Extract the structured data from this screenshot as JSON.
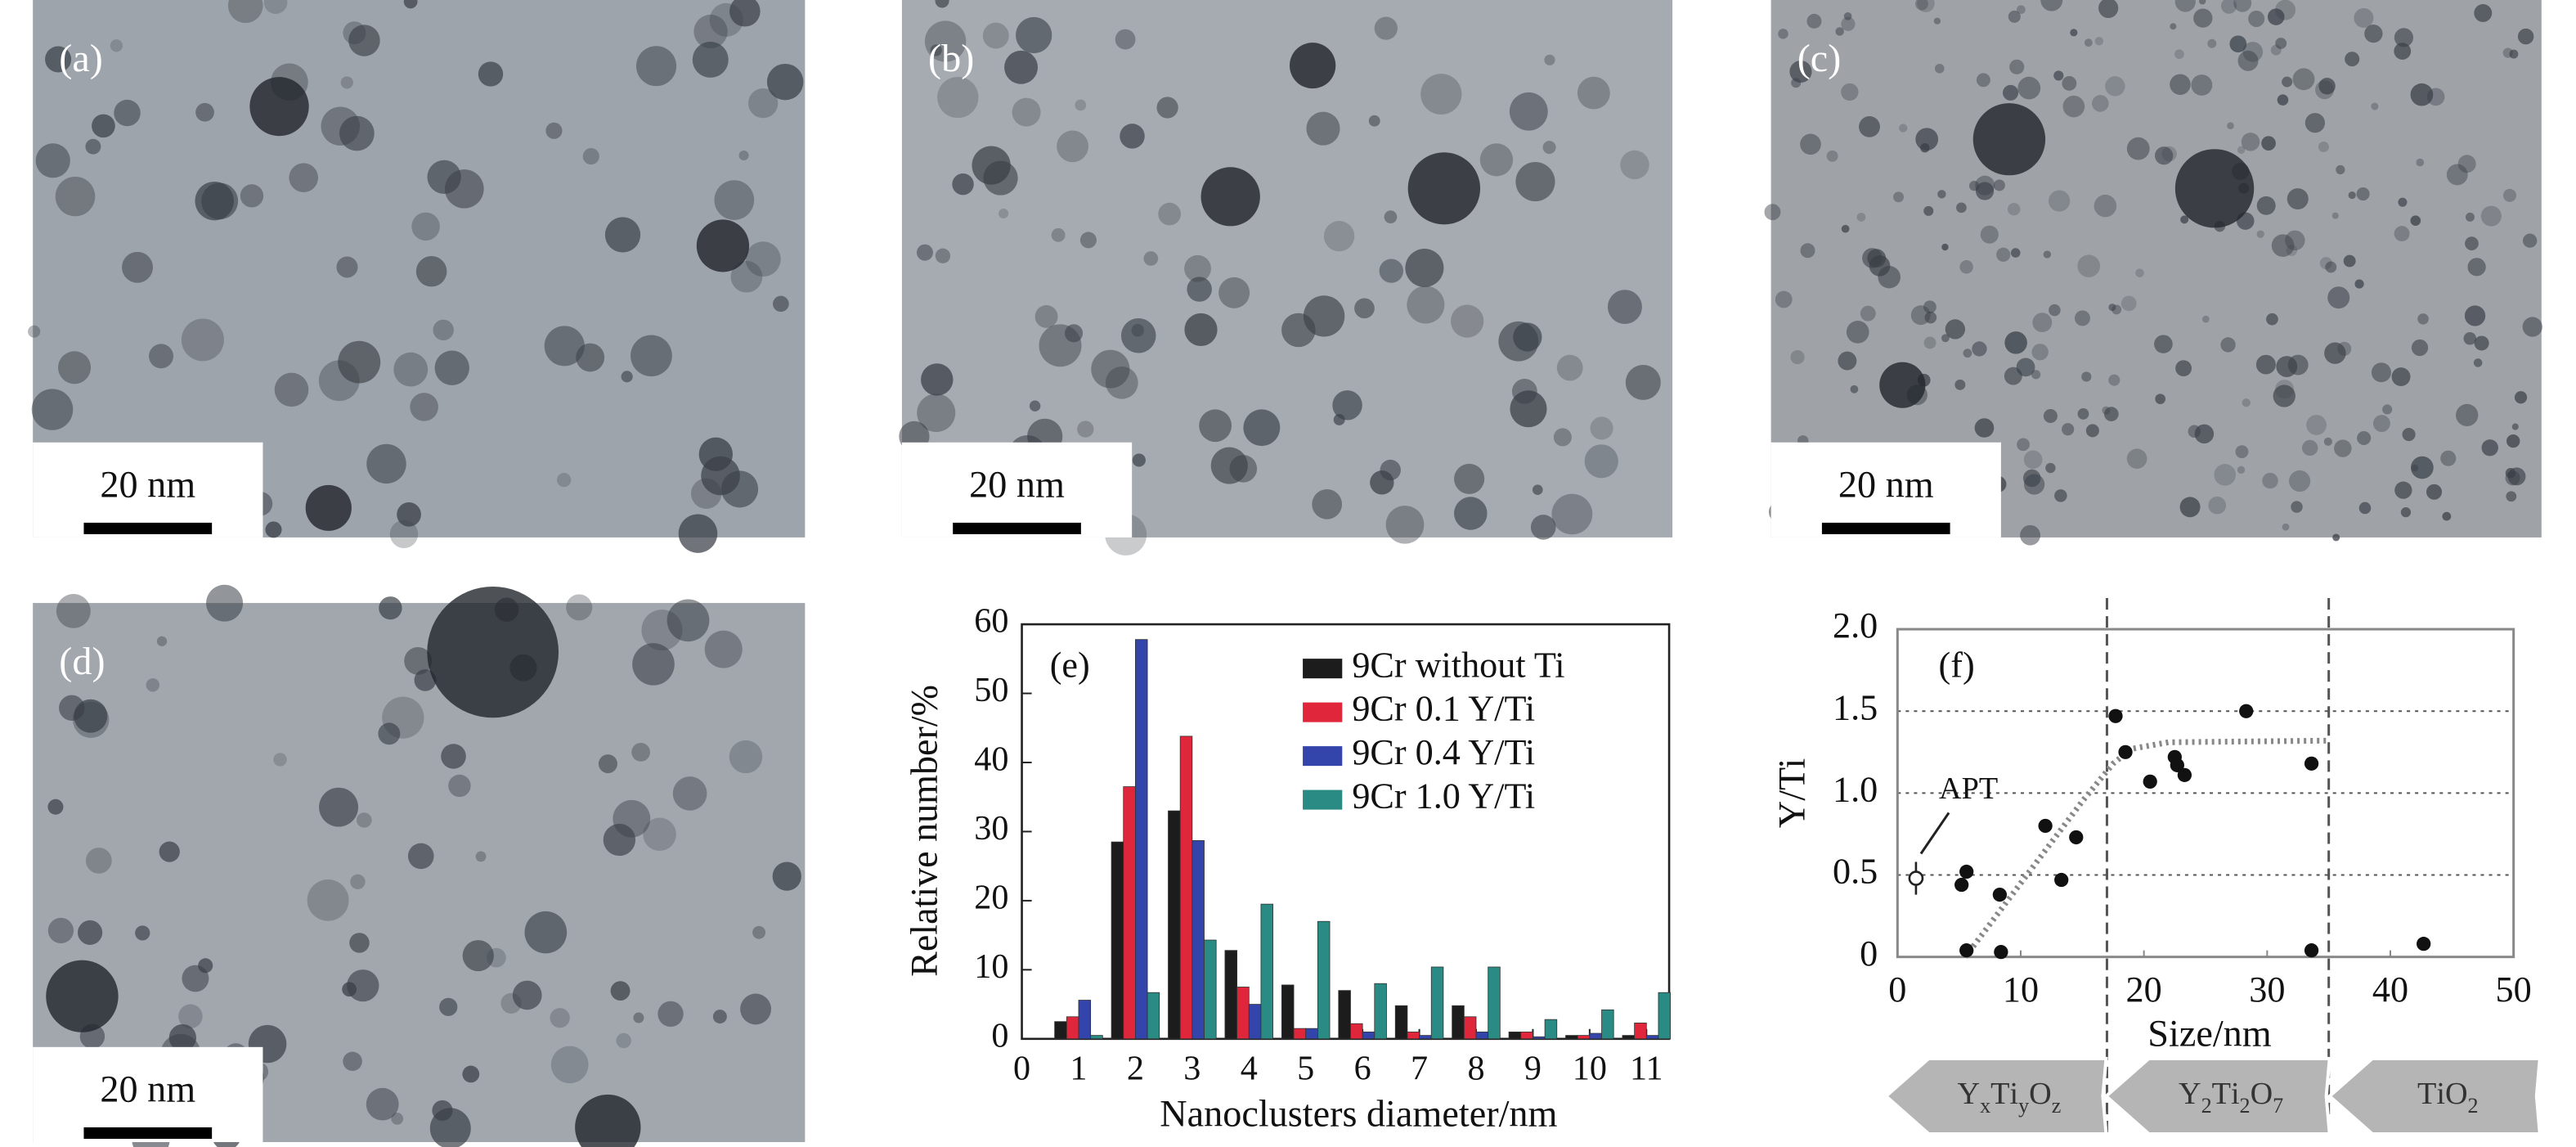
{
  "panels": [
    {
      "label": "(a)",
      "scale_bar": "20 nm"
    },
    {
      "label": "(b)",
      "scale_bar": "20 nm"
    },
    {
      "label": "(c)",
      "scale_bar": "20 nm"
    },
    {
      "label": "(d)",
      "scale_bar": "20 nm"
    }
  ],
  "chart_data": [
    {
      "type": "bar",
      "panel_label": "(e)",
      "xlabel": "Nanoclusters diameter/nm",
      "ylabel": "Relative number/%",
      "x": [
        1,
        2,
        3,
        4,
        5,
        6,
        7,
        8,
        9,
        10,
        11
      ],
      "xlim": [
        0,
        11.4
      ],
      "xticks": [
        0,
        1,
        2,
        3,
        4,
        5,
        6,
        7,
        8,
        9,
        10,
        11
      ],
      "ylim": [
        0,
        60
      ],
      "yticks": [
        0,
        10,
        20,
        30,
        40,
        50,
        60
      ],
      "legend": "upper right",
      "series": [
        {
          "name": "9Cr without Ti",
          "color": "#1c1c1c",
          "values": [
            2.5,
            28.5,
            33,
            12.8,
            7.8,
            7,
            4.8,
            4.8,
            1,
            0.5,
            0.5
          ]
        },
        {
          "name": "9Cr 0.1 Y/Ti",
          "color": "#e0263a",
          "values": [
            3.2,
            36.5,
            43.8,
            7.5,
            1.5,
            2.2,
            1,
            3.2,
            1,
            0.5,
            2.3
          ]
        },
        {
          "name": "9Cr 0.4 Y/Ti",
          "color": "#3344aa",
          "values": [
            5.6,
            57.8,
            28.7,
            5,
            1.5,
            1,
            0.5,
            1,
            0.3,
            0.8,
            0.5
          ]
        },
        {
          "name": "9Cr 1.0 Y/Ti",
          "color": "#2a8a84",
          "values": [
            0.5,
            6.7,
            14.3,
            19.5,
            17,
            8,
            10.4,
            10.4,
            2.8,
            4.2,
            6.7
          ]
        }
      ]
    },
    {
      "type": "scatter",
      "panel_label": "(f)",
      "xlabel": "Size/nm",
      "ylabel": "Y/Ti",
      "xlim": [
        0,
        50
      ],
      "xticks": [
        0,
        10,
        20,
        30,
        40,
        50
      ],
      "ylim": [
        0,
        2
      ],
      "yticks": [
        0,
        0.5,
        {
          "value": 1,
          "label": "1.0"
        },
        1.5,
        {
          "value": 2,
          "label": "2.0"
        }
      ],
      "grid": true,
      "series": [
        {
          "color": "#111111",
          "x": [
            5.2,
            5.6,
            5.6,
            8.3,
            8.4,
            12,
            13.3,
            14.5,
            17.7,
            18.5,
            20.5,
            22.5,
            22.7,
            23.3,
            28.3,
            33.6,
            33.6,
            42.7
          ],
          "y": [
            0.44,
            0.52,
            0.04,
            0.38,
            0.03,
            0.8,
            0.47,
            0.73,
            1.47,
            1.25,
            1.07,
            1.22,
            1.17,
            1.11,
            1.5,
            1.18,
            0.04,
            0.08
          ]
        }
      ],
      "annotation": {
        "text": "APT",
        "x": 1.5,
        "y": 0.48,
        "error": 0.1
      },
      "vlines": [
        17,
        35
      ],
      "curve": {
        "x": [
          5.5,
          10,
          15,
          17.5,
          19,
          22,
          35
        ],
        "y": [
          0,
          0.45,
          0.95,
          1.18,
          1.27,
          1.31,
          1.32
        ]
      }
    }
  ],
  "phase_bands": [
    "YxTiyOz",
    "Y2Ti2O7",
    "TiO2"
  ]
}
